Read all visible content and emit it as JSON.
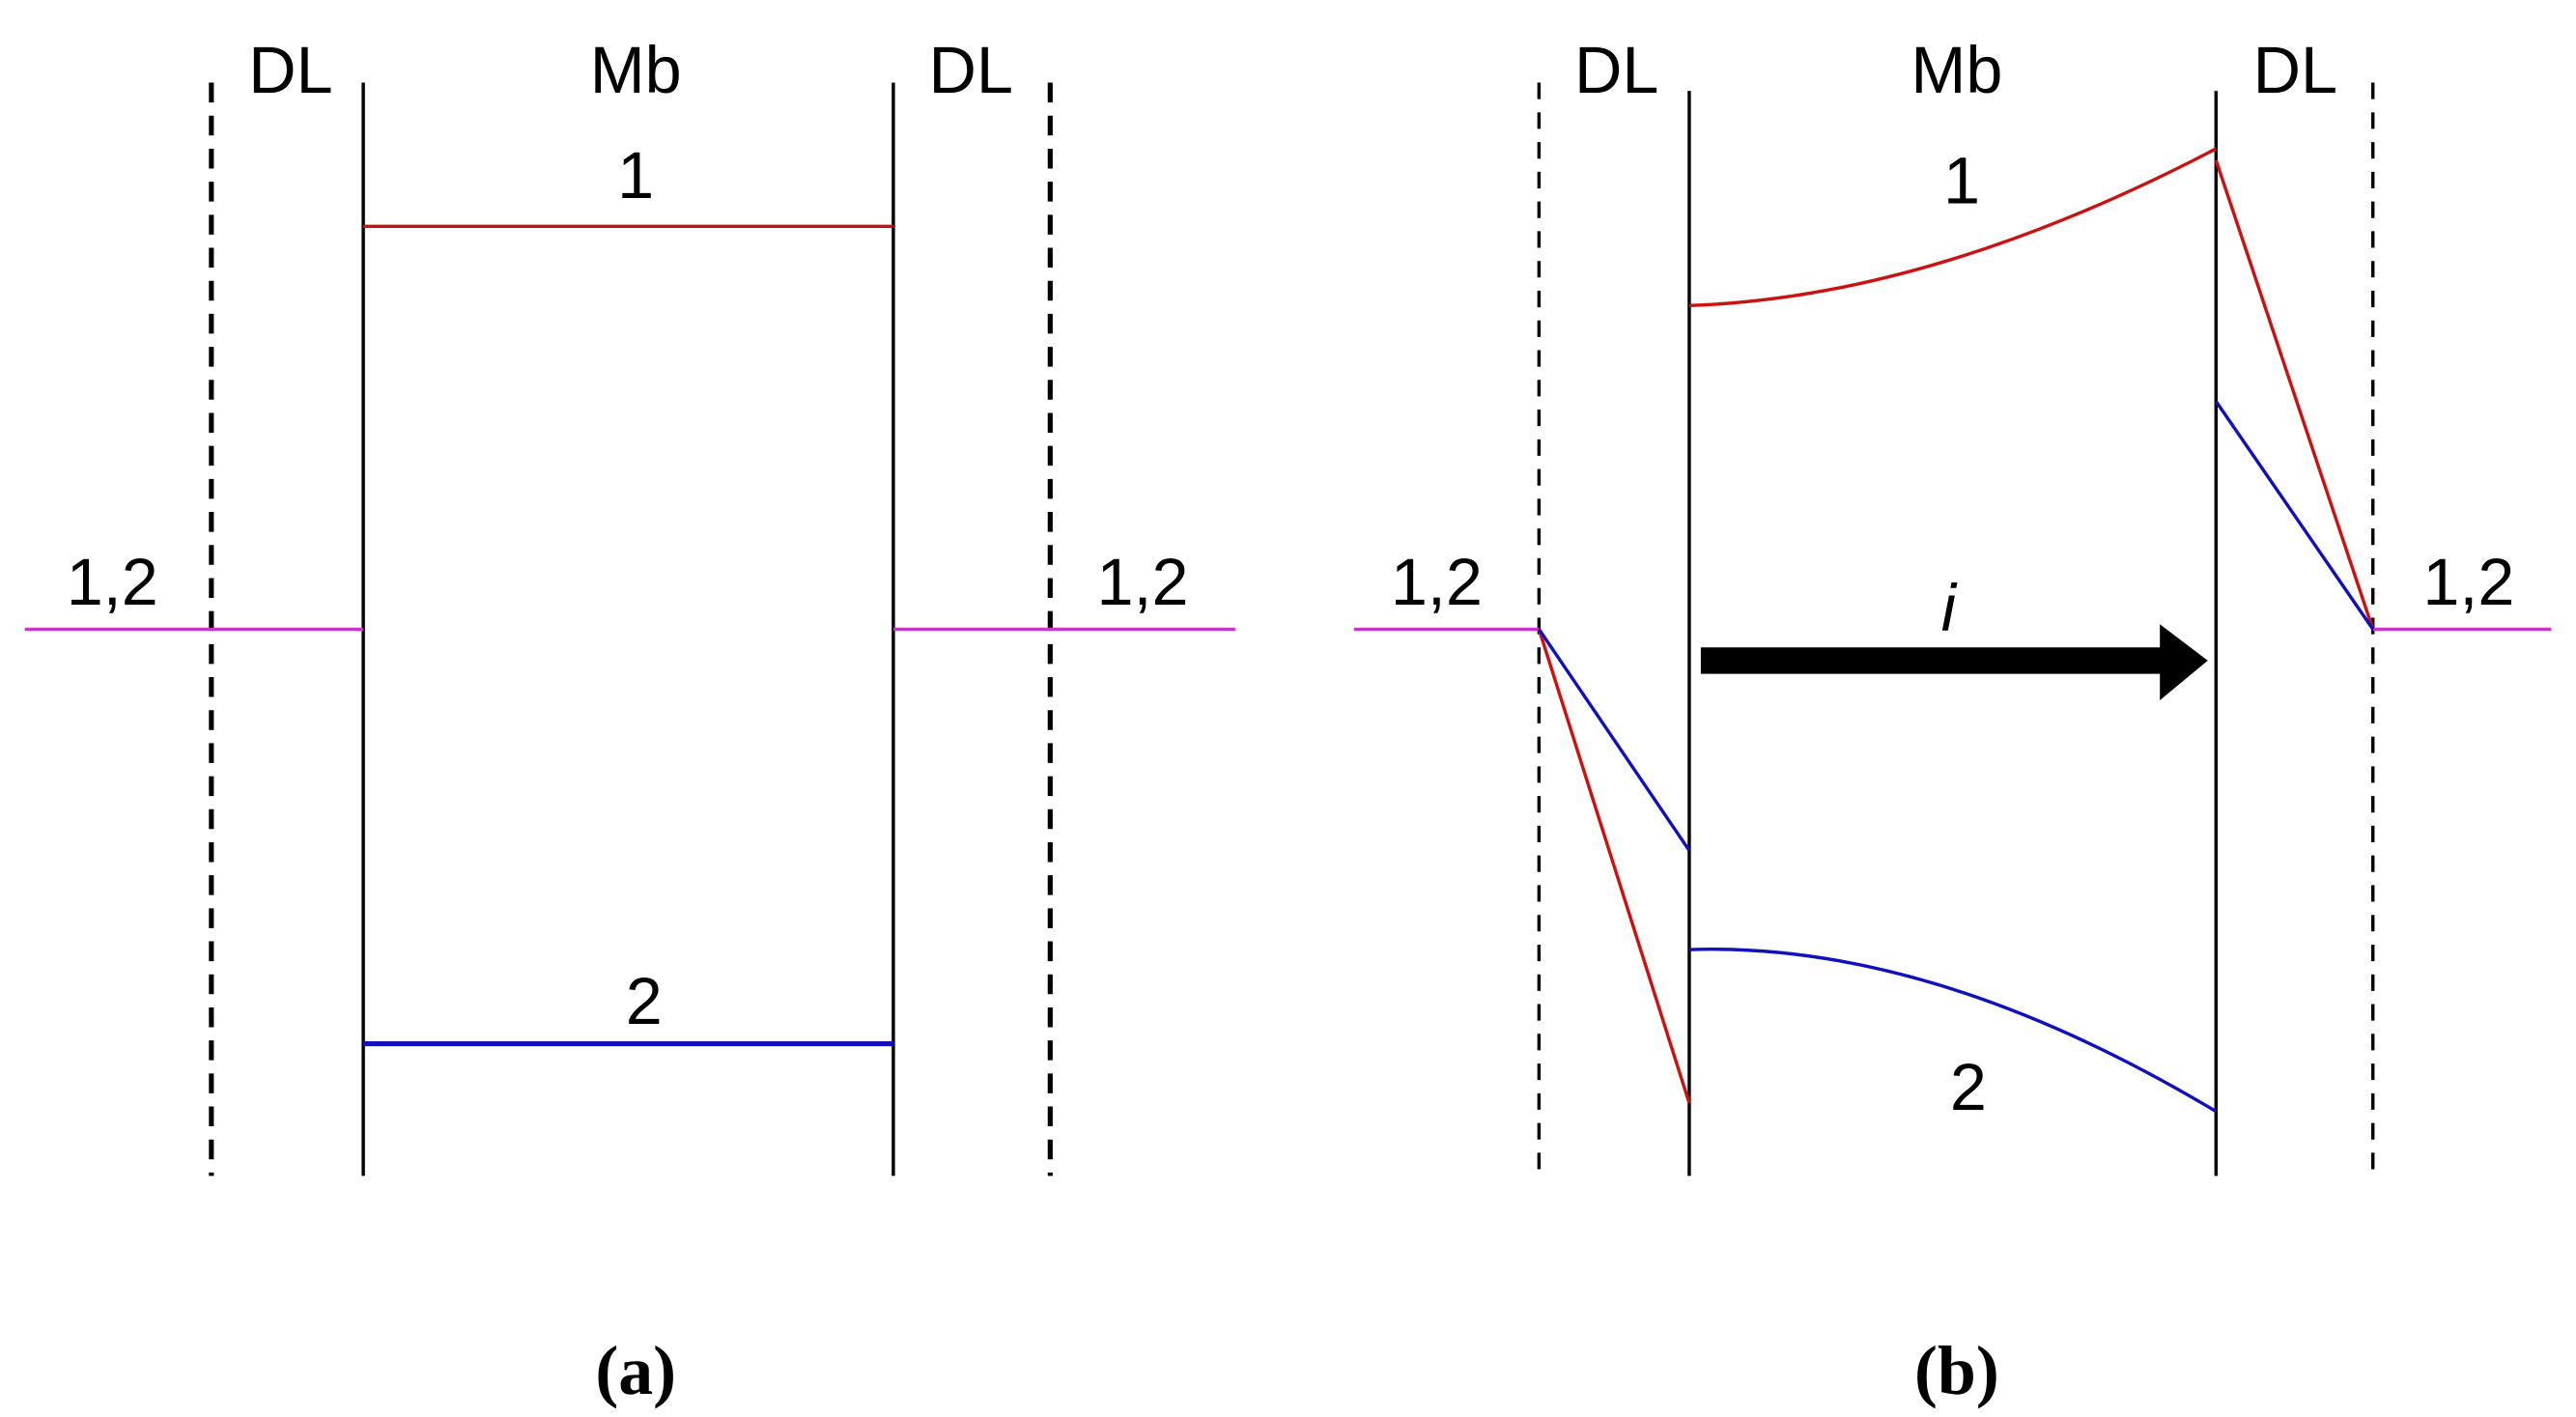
{
  "panels": [
    {
      "caption": "(a)",
      "regions": [
        "DL",
        "Mb",
        "DL"
      ],
      "labels": {
        "top": "1",
        "bottom": "2",
        "left": "1,2",
        "right": "1,2"
      }
    },
    {
      "caption": "(b)",
      "regions": [
        "DL",
        "Mb",
        "DL"
      ],
      "labels": {
        "top": "1",
        "bottom": "2",
        "left": "1,2",
        "right": "1,2",
        "arrow": "i"
      }
    }
  ]
}
